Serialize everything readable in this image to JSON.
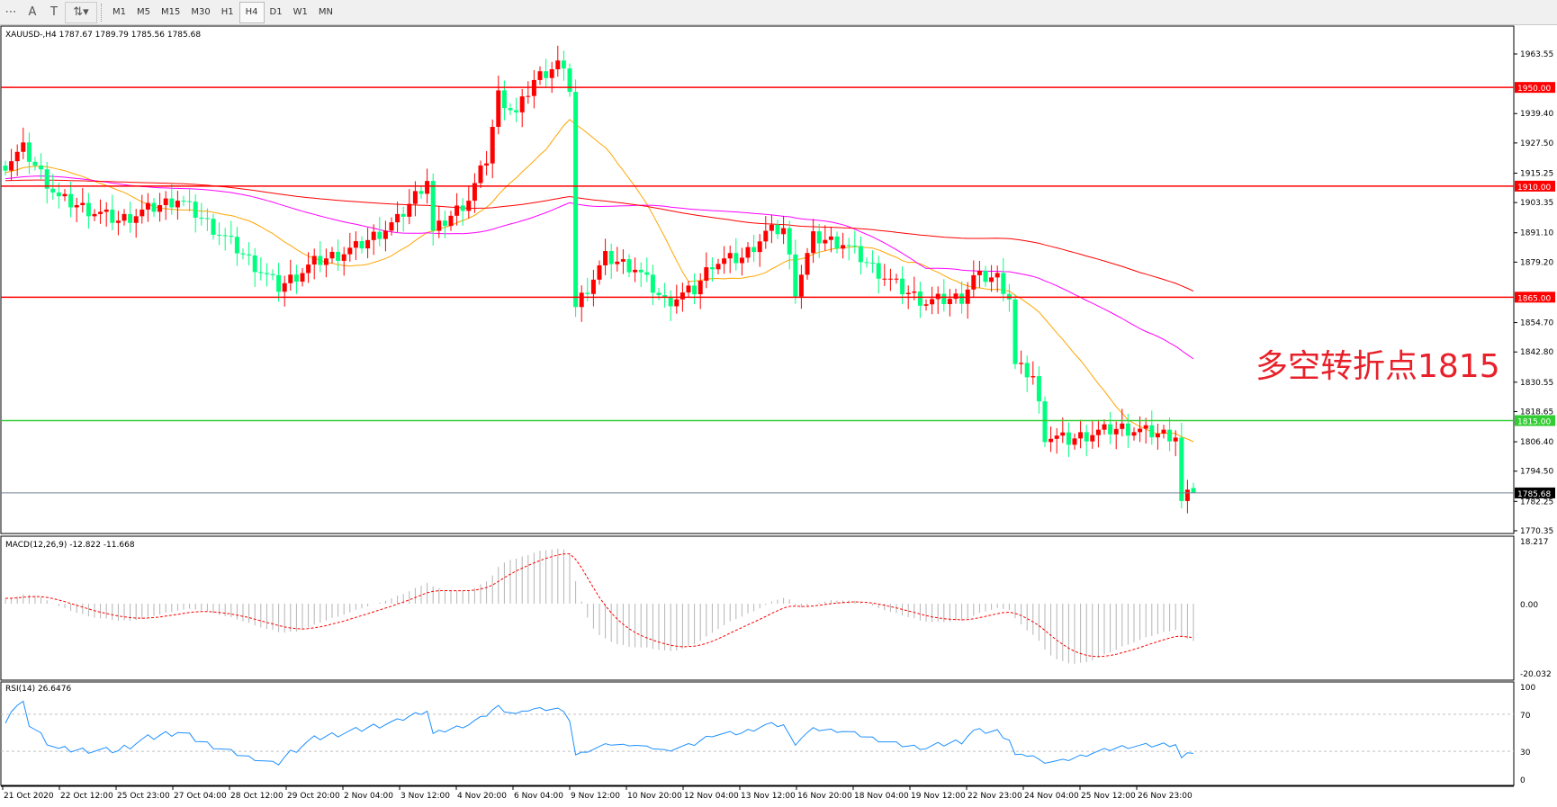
{
  "toolbar": {
    "icons": [
      "fibonacci-fan-icon",
      "text-icon",
      "text-label-icon",
      "arrows-icon"
    ],
    "timeframes": [
      "M1",
      "M5",
      "M15",
      "M30",
      "H1",
      "H4",
      "D1",
      "W1",
      "MN"
    ],
    "active_timeframe": "H4"
  },
  "main": {
    "title": "XAUUSD-,H4  1787.67 1789.79 1785.56 1785.68",
    "price_ticks": [
      "1963.55",
      "1939.40",
      "1927.50",
      "1915.25",
      "1903.35",
      "1891.10",
      "1879.20",
      "1854.70",
      "1842.80",
      "1830.55",
      "1818.65",
      "1806.40",
      "1794.50",
      "1782.25",
      "1770.35"
    ],
    "levels": [
      {
        "price": 1950.0,
        "label": "1950.00",
        "color": "#ff0000"
      },
      {
        "price": 1910.0,
        "label": "1910.00",
        "color": "#ff0000"
      },
      {
        "price": 1865.0,
        "label": "1865.00",
        "color": "#ff0000"
      },
      {
        "price": 1815.0,
        "label": "1815.00",
        "color": "#32cd32"
      }
    ],
    "current_price": {
      "price": 1785.68,
      "label": "1785.68"
    },
    "annotation": "多空转折点1815",
    "bull_color": "#ff0000",
    "bear_color": "#00ff7f",
    "ma_colors": [
      "#ffa500",
      "#ff00ff",
      "#ff0000"
    ]
  },
  "price_path": [
    [
      0,
      1919
    ],
    [
      3,
      1925
    ],
    [
      9,
      1905
    ],
    [
      19,
      1896
    ],
    [
      29,
      1905
    ],
    [
      37,
      1889
    ],
    [
      46,
      1869
    ],
    [
      52,
      1879
    ],
    [
      59,
      1885
    ],
    [
      66,
      1896
    ],
    [
      71,
      1913
    ],
    [
      72,
      1891
    ],
    [
      78,
      1905
    ],
    [
      81,
      1921
    ],
    [
      83,
      1947
    ],
    [
      86,
      1939
    ],
    [
      89,
      1953
    ],
    [
      93,
      1960
    ],
    [
      95,
      1950
    ],
    [
      96,
      1861
    ],
    [
      97,
      1865
    ],
    [
      101,
      1881
    ],
    [
      106,
      1877
    ],
    [
      111,
      1863
    ],
    [
      116,
      1868
    ],
    [
      119,
      1879
    ],
    [
      124,
      1881
    ],
    [
      128,
      1891
    ],
    [
      131,
      1893
    ],
    [
      133,
      1868
    ],
    [
      136,
      1889
    ],
    [
      141,
      1887
    ],
    [
      146,
      1877
    ],
    [
      151,
      1868
    ],
    [
      155,
      1863
    ],
    [
      161,
      1865
    ],
    [
      163,
      1873
    ],
    [
      167,
      1873
    ],
    [
      169,
      1865
    ],
    [
      170,
      1837
    ],
    [
      173,
      1833
    ],
    [
      175,
      1809
    ],
    [
      179,
      1807
    ],
    [
      183,
      1810
    ],
    [
      188,
      1812
    ],
    [
      193,
      1810
    ],
    [
      197,
      1809
    ],
    [
      198,
      1782.4
    ],
    [
      199,
      1787
    ],
    [
      200,
      1785.68
    ]
  ],
  "macd": {
    "label": "MACD(12,26,9) -12.822 -11.668",
    "ticks": [
      "18.217",
      "0.00",
      "-20.032"
    ]
  },
  "rsi": {
    "label": "RSI(14) 26.6476",
    "ticks": [
      "100",
      "70",
      "30",
      "0"
    ]
  },
  "dates": [
    "21 Oct 2020",
    "22 Oct 12:00",
    "25 Oct 23:00",
    "27 Oct 04:00",
    "28 Oct 12:00",
    "29 Oct 20:00",
    "2 Nov 04:00",
    "3 Nov 12:00",
    "4 Nov 20:00",
    "6 Nov 04:00",
    "9 Nov 12:00",
    "10 Nov 20:00",
    "12 Nov 04:00",
    "13 Nov 12:00",
    "16 Nov 20:00",
    "18 Nov 04:00",
    "19 Nov 12:00",
    "22 Nov 23:00",
    "24 Nov 04:00",
    "25 Nov 12:00",
    "26 Nov 23:00"
  ]
}
